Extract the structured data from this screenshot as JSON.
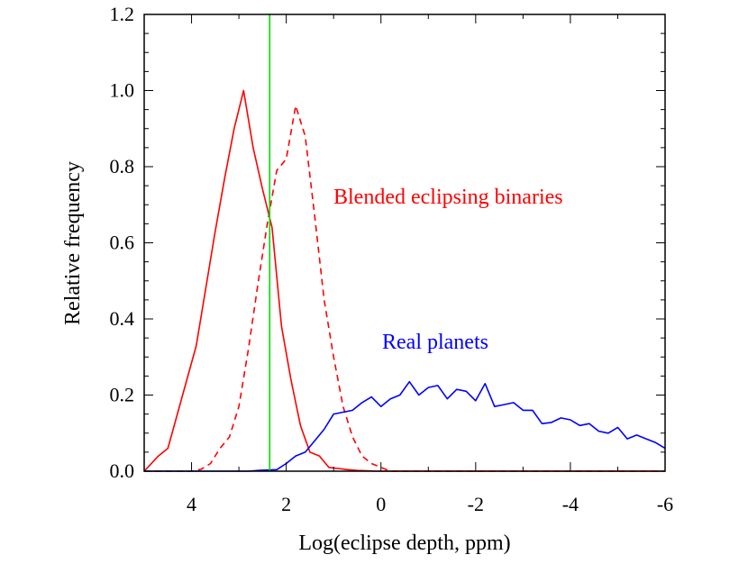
{
  "chart_data": {
    "type": "line",
    "xlabel": "Log(eclipse depth, ppm)",
    "ylabel": "Relative frequency",
    "xlim": [
      5,
      -6
    ],
    "ylim": [
      0,
      1.2
    ],
    "x_reversed": true,
    "xticks": [
      4,
      2,
      0,
      -2,
      -4,
      -6
    ],
    "xtick_labels": [
      "4",
      "2",
      "0",
      "-2",
      "-4",
      "-6"
    ],
    "yticks": [
      0,
      0.2,
      0.4,
      0.6,
      0.8,
      1.0,
      1.2
    ],
    "ytick_labels": [
      "0.0",
      "0.2",
      "0.4",
      "0.6",
      "0.8",
      "1.0",
      "1.2"
    ],
    "grid": false,
    "annotations": [
      {
        "text": "Blended eclipsing binaries",
        "x": 1.2,
        "y": 0.72,
        "color": "#ff0000"
      },
      {
        "text": "Real planets",
        "x": -0.3,
        "y": 0.33,
        "color": "#0000ff"
      }
    ],
    "vline": {
      "x": 2.35,
      "color": "#00dd00"
    },
    "series": [
      {
        "color": "#ff0000",
        "style": "solid",
        "x": [
          5.0,
          4.7,
          4.5,
          4.3,
          4.1,
          3.9,
          3.7,
          3.5,
          3.3,
          3.1,
          2.9,
          2.7,
          2.5,
          2.3,
          2.1,
          1.9,
          1.7,
          1.5,
          1.3,
          1.1,
          0.9,
          0.7,
          0.5,
          0.3,
          0.1,
          -0.1,
          -1.0,
          -2.0,
          -3.0,
          -4.0,
          -5.0,
          -6.0
        ],
        "y": [
          0.0,
          0.04,
          0.06,
          0.15,
          0.24,
          0.33,
          0.48,
          0.63,
          0.77,
          0.9,
          1.0,
          0.85,
          0.74,
          0.64,
          0.38,
          0.24,
          0.12,
          0.05,
          0.04,
          0.01,
          0.007,
          0.004,
          0.002,
          0.001,
          0.0,
          0.0,
          0.0,
          0.0,
          0.0,
          0.0,
          0.0,
          0.0
        ]
      },
      {
        "color": "#ff0000",
        "style": "dashed",
        "x": [
          5.0,
          4.0,
          3.8,
          3.6,
          3.4,
          3.2,
          3.0,
          2.8,
          2.6,
          2.4,
          2.2,
          2.0,
          1.8,
          1.6,
          1.4,
          1.2,
          1.0,
          0.8,
          0.6,
          0.4,
          0.2,
          0.0,
          -0.2,
          -1.0,
          -2.0,
          -3.0,
          -4.0,
          -5.0,
          -6.0
        ],
        "y": [
          0.0,
          0.0,
          0.005,
          0.02,
          0.06,
          0.09,
          0.17,
          0.32,
          0.49,
          0.65,
          0.79,
          0.82,
          0.96,
          0.88,
          0.67,
          0.45,
          0.3,
          0.17,
          0.09,
          0.04,
          0.02,
          0.01,
          0.0,
          0.0,
          0.0,
          0.0,
          0.0,
          0.0,
          0.0
        ]
      },
      {
        "color": "#0000ff",
        "style": "solid",
        "x": [
          5.0,
          2.8,
          2.6,
          2.4,
          2.2,
          2.0,
          1.8,
          1.6,
          1.4,
          1.2,
          1.0,
          0.8,
          0.6,
          0.4,
          0.2,
          0.0,
          -0.2,
          -0.4,
          -0.6,
          -0.8,
          -1.0,
          -1.2,
          -1.4,
          -1.6,
          -1.8,
          -2.0,
          -2.2,
          -2.4,
          -2.6,
          -2.8,
          -3.0,
          -3.2,
          -3.4,
          -3.6,
          -3.8,
          -4.0,
          -4.2,
          -4.4,
          -4.6,
          -4.8,
          -5.0,
          -5.2,
          -5.4,
          -5.6,
          -5.8,
          -6.0
        ],
        "y": [
          0.0,
          0.0,
          0.002,
          0.003,
          0.004,
          0.02,
          0.04,
          0.05,
          0.08,
          0.11,
          0.15,
          0.155,
          0.16,
          0.18,
          0.195,
          0.17,
          0.19,
          0.2,
          0.235,
          0.2,
          0.22,
          0.225,
          0.19,
          0.215,
          0.21,
          0.185,
          0.23,
          0.17,
          0.175,
          0.18,
          0.16,
          0.16,
          0.125,
          0.128,
          0.14,
          0.135,
          0.12,
          0.125,
          0.105,
          0.1,
          0.115,
          0.085,
          0.095,
          0.085,
          0.075,
          0.06
        ]
      }
    ]
  }
}
